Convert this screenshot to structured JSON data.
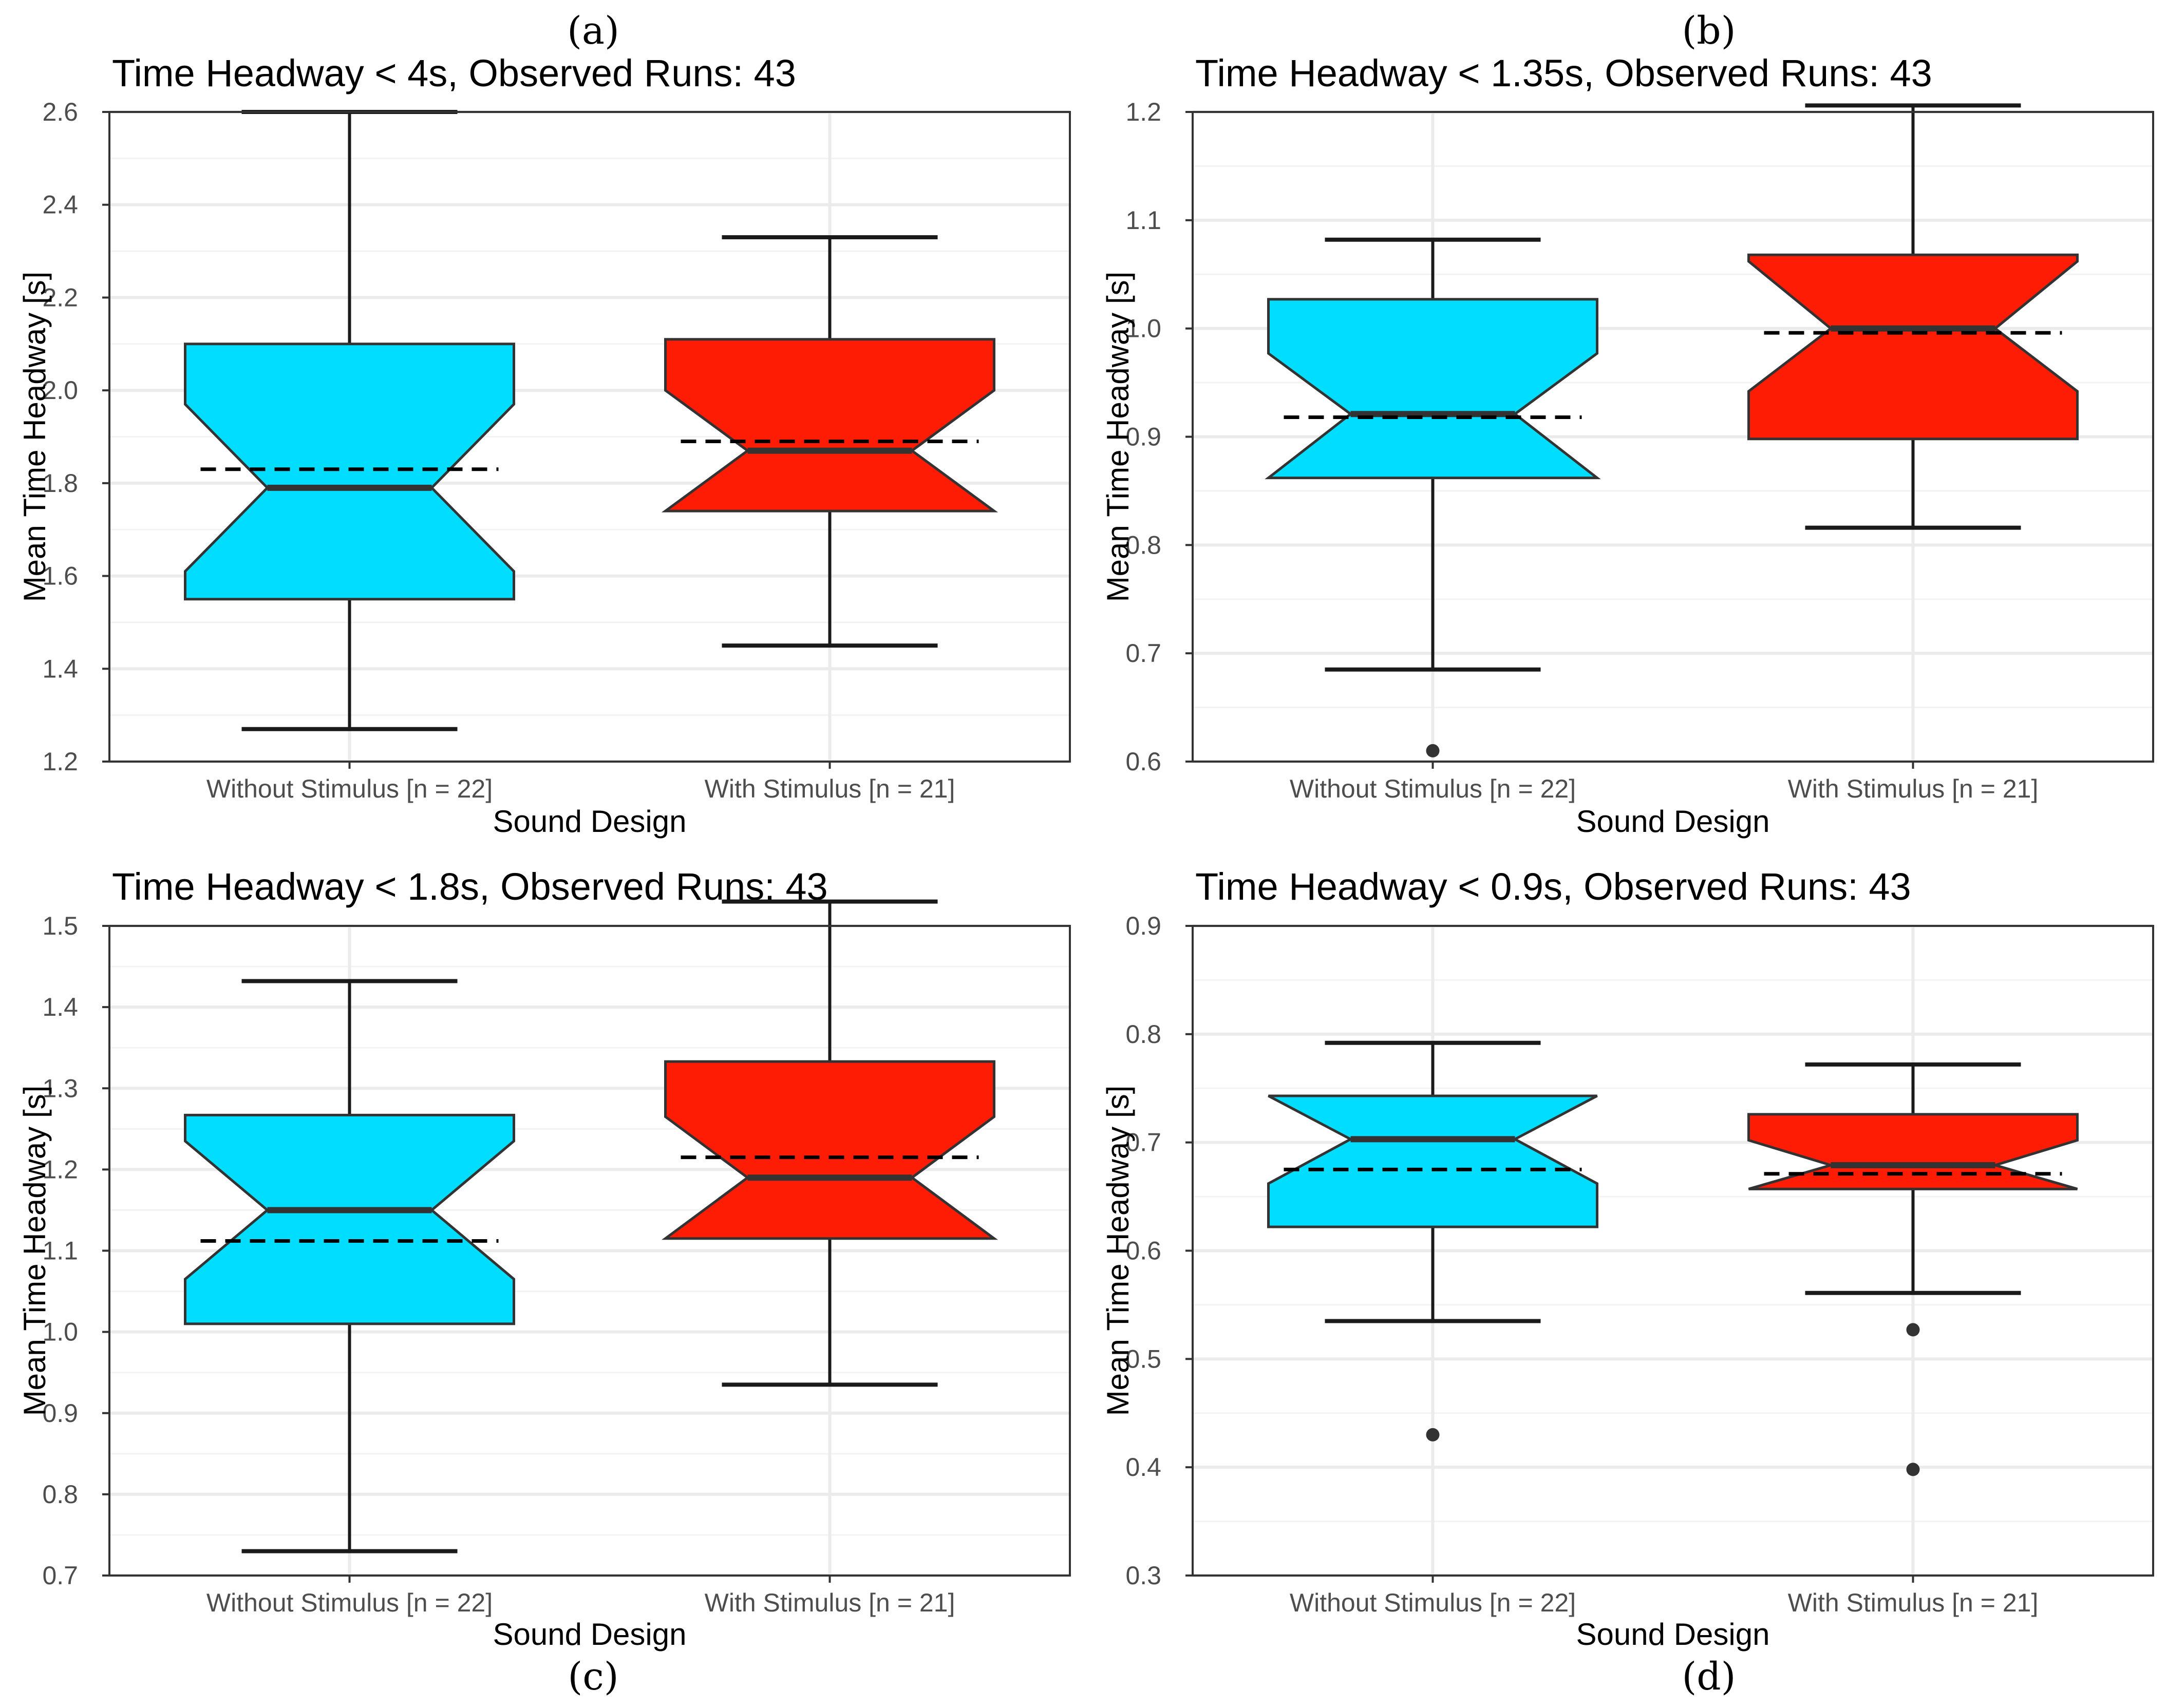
{
  "colors": {
    "without": "#00DDFF",
    "with": "#FF1C05",
    "box_stroke": "#333333",
    "grid_major": "#EBEBEB",
    "grid_minor": "#F3F3F3",
    "panel_border": "#333333",
    "outlier": "#333333"
  },
  "chart_data": [
    {
      "panel": "(a)",
      "type": "boxplot",
      "title": "Time Headway < 4s,  Observed Runs: 43",
      "xlabel": "Sound Design",
      "ylabel": "Mean Time Headway [s]",
      "categories": [
        "Without Stimulus [n = 22]",
        "With Stimulus [n = 21]"
      ],
      "ylim": [
        1.2,
        2.6
      ],
      "yticks": [
        1.2,
        1.4,
        1.6,
        1.8,
        2.0,
        2.2,
        2.4,
        2.6
      ],
      "ytick_labels": [
        "1.2",
        "1.4",
        "1.6",
        "1.8",
        "2.0",
        "2.2",
        "2.4",
        "2.6"
      ],
      "series": [
        {
          "name": "Without Stimulus",
          "whisker_low": 1.27,
          "q1": 1.55,
          "median": 1.79,
          "q3": 2.1,
          "whisker_high": 2.6,
          "notch_low": 1.61,
          "notch_high": 1.97,
          "mean": 1.83,
          "outliers": []
        },
        {
          "name": "With Stimulus",
          "whisker_low": 1.45,
          "q1": 1.74,
          "median": 1.87,
          "q3": 2.11,
          "whisker_high": 2.33,
          "notch_low": 1.74,
          "notch_high": 2.0,
          "mean": 1.89,
          "outliers": []
        }
      ]
    },
    {
      "panel": "(b)",
      "type": "boxplot",
      "title": "Time Headway < 1.35s,  Observed Runs: 43",
      "xlabel": "Sound Design",
      "ylabel": "Mean Time Headway [s]",
      "categories": [
        "Without Stimulus [n = 22]",
        "With Stimulus [n = 21]"
      ],
      "ylim": [
        0.6,
        1.2
      ],
      "yticks": [
        0.6,
        0.7,
        0.8,
        0.9,
        1.0,
        1.1,
        1.2
      ],
      "ytick_labels": [
        "0.6",
        "0.7",
        "0.8",
        "0.9",
        "1.0",
        "1.1",
        "1.2"
      ],
      "series": [
        {
          "name": "Without Stimulus",
          "whisker_low": 0.685,
          "q1": 0.862,
          "median": 0.921,
          "q3": 1.027,
          "whisker_high": 1.082,
          "notch_low": 0.862,
          "notch_high": 0.977,
          "mean": 0.918,
          "outliers": [
            0.61
          ]
        },
        {
          "name": "With Stimulus",
          "whisker_low": 0.816,
          "q1": 0.898,
          "median": 1.0,
          "q3": 1.068,
          "whisker_high": 1.206,
          "notch_low": 0.942,
          "notch_high": 1.062,
          "mean": 0.996,
          "outliers": []
        }
      ]
    },
    {
      "panel": "(c)",
      "type": "boxplot",
      "title": "Time Headway < 1.8s,  Observed Runs: 43",
      "xlabel": "Sound Design",
      "ylabel": "Mean Time Headway [s]",
      "categories": [
        "Without Stimulus [n = 22]",
        "With Stimulus [n = 21]"
      ],
      "ylim": [
        0.7,
        1.5
      ],
      "yticks": [
        0.7,
        0.8,
        0.9,
        1.0,
        1.1,
        1.2,
        1.3,
        1.4,
        1.5
      ],
      "ytick_labels": [
        "0.7",
        "0.8",
        "0.9",
        "1.0",
        "1.1",
        "1.2",
        "1.3",
        "1.4",
        "1.5"
      ],
      "series": [
        {
          "name": "Without Stimulus",
          "whisker_low": 0.73,
          "q1": 1.01,
          "median": 1.15,
          "q3": 1.267,
          "whisker_high": 1.432,
          "notch_low": 1.065,
          "notch_high": 1.235,
          "mean": 1.112,
          "outliers": []
        },
        {
          "name": "With Stimulus",
          "whisker_low": 0.935,
          "q1": 1.115,
          "median": 1.19,
          "q3": 1.333,
          "whisker_high": 1.53,
          "notch_low": 1.115,
          "notch_high": 1.265,
          "mean": 1.215,
          "outliers": []
        }
      ]
    },
    {
      "panel": "(d)",
      "type": "boxplot",
      "title": "Time Headway < 0.9s,  Observed Runs: 43",
      "xlabel": "Sound Design",
      "ylabel": "Mean Time Headway [s]",
      "categories": [
        "Without Stimulus [n = 22]",
        "With Stimulus [n = 21]"
      ],
      "ylim": [
        0.3,
        0.9
      ],
      "yticks": [
        0.3,
        0.4,
        0.5,
        0.6,
        0.7,
        0.8,
        0.9
      ],
      "ytick_labels": [
        "0.3",
        "0.4",
        "0.5",
        "0.6",
        "0.7",
        "0.8",
        "0.9"
      ],
      "series": [
        {
          "name": "Without Stimulus",
          "whisker_low": 0.535,
          "q1": 0.622,
          "median": 0.703,
          "q3": 0.743,
          "whisker_high": 0.792,
          "notch_low": 0.662,
          "notch_high": 0.743,
          "mean": 0.675,
          "outliers": [
            0.43
          ]
        },
        {
          "name": "With Stimulus",
          "whisker_low": 0.561,
          "q1": 0.657,
          "median": 0.679,
          "q3": 0.726,
          "whisker_high": 0.772,
          "notch_low": 0.657,
          "notch_high": 0.702,
          "mean": 0.671,
          "outliers": [
            0.527,
            0.398
          ]
        }
      ]
    }
  ]
}
